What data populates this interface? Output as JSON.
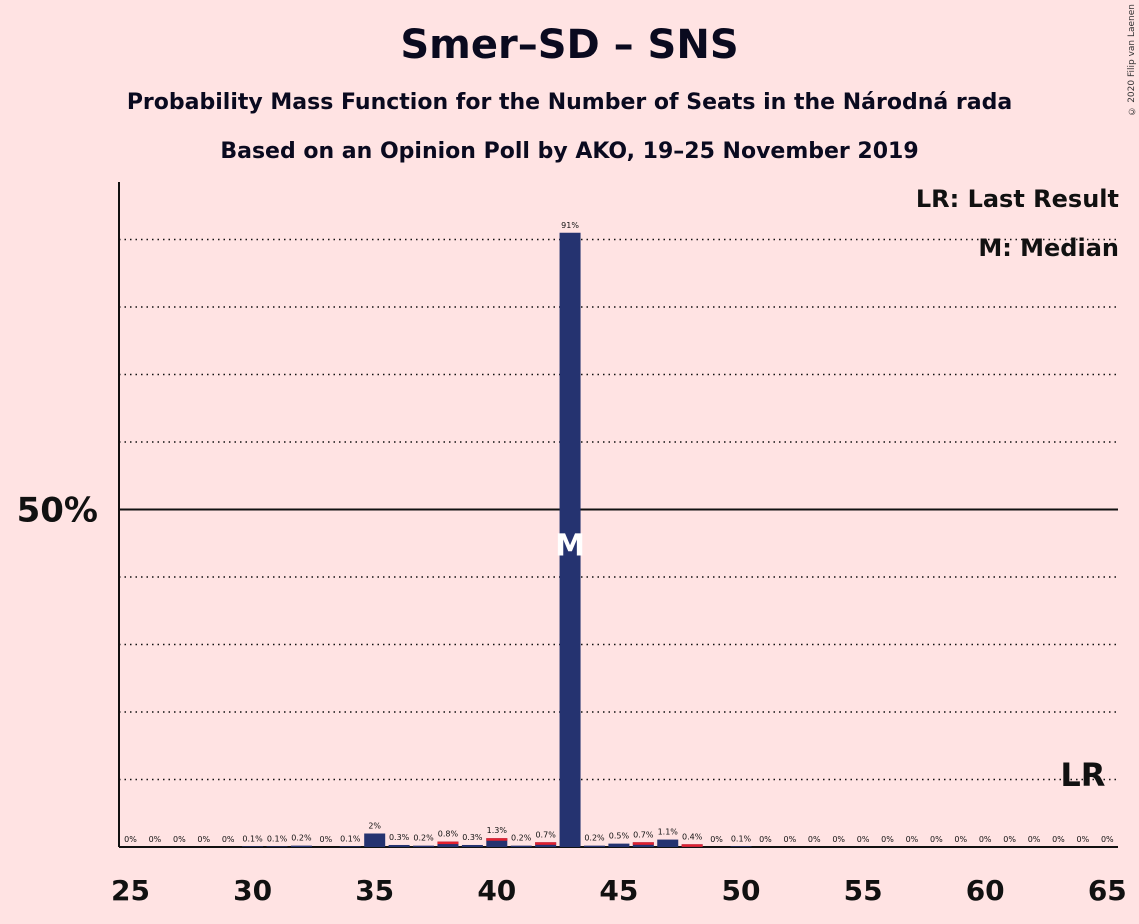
{
  "header": {
    "title": "Smer–SD – SNS",
    "subtitle": "Probability Mass Function for the Number of Seats in the Národná rada",
    "subtitle2": "Based on an Opinion Poll by AKO, 19–25 November 2019"
  },
  "legend": {
    "last_result": "LR: Last Result",
    "median": "M: Median"
  },
  "copyright": "© 2020 Filip van Laenen",
  "colors": {
    "background": "#ffe3e3",
    "primary_bar": "#253370",
    "last_result_bar": "#e4202e",
    "text": "#0a0a1f"
  },
  "chart_data": {
    "type": "bar",
    "x": [
      25,
      26,
      27,
      28,
      29,
      30,
      31,
      32,
      33,
      34,
      35,
      36,
      37,
      38,
      39,
      40,
      41,
      42,
      43,
      44,
      45,
      46,
      47,
      48,
      49,
      50,
      51,
      52,
      53,
      54,
      55,
      56,
      57,
      58,
      59,
      60,
      61,
      62,
      63,
      64,
      65
    ],
    "values": [
      0,
      0,
      0,
      0,
      0,
      0.1,
      0.1,
      0.2,
      0,
      0.1,
      2,
      0.3,
      0.2,
      0.8,
      0.3,
      1.3,
      0.2,
      0.7,
      91,
      0.2,
      0.5,
      0.7,
      1.1,
      0.4,
      0,
      0.1,
      0,
      0,
      0,
      0,
      0,
      0,
      0,
      0,
      0,
      0,
      0,
      0,
      0,
      0,
      0
    ],
    "labels": [
      "0%",
      "0%",
      "0%",
      "0%",
      "0%",
      "0.1%",
      "0.1%",
      "0.2%",
      "0%",
      "0.1%",
      "2%",
      "0.3%",
      "0.2%",
      "0.8%",
      "0.3%",
      "1.3%",
      "0.2%",
      "0.7%",
      "91%",
      "0.2%",
      "0.5%",
      "0.7%",
      "1.1%",
      "0.4%",
      "0%",
      "0.1%",
      "0%",
      "0%",
      "0%",
      "0%",
      "0%",
      "0%",
      "0%",
      "0%",
      "0%",
      "0%",
      "0%",
      "0%",
      "0%",
      "0%",
      "0%"
    ],
    "highlight_seats": [
      38,
      40,
      42,
      46,
      48
    ],
    "median": 43,
    "median_marker": "M",
    "last_result": 64,
    "last_result_marker": "LR",
    "ylim": [
      0,
      100
    ],
    "y_reference": 50,
    "y_tick_label": "50%",
    "x_ticks": [
      25,
      30,
      35,
      40,
      45,
      50,
      55,
      60,
      65
    ],
    "x_tick_labels": [
      "25",
      "30",
      "35",
      "40",
      "45",
      "50",
      "55",
      "60",
      "65"
    ],
    "grid": true,
    "legend_position": "top-right"
  }
}
